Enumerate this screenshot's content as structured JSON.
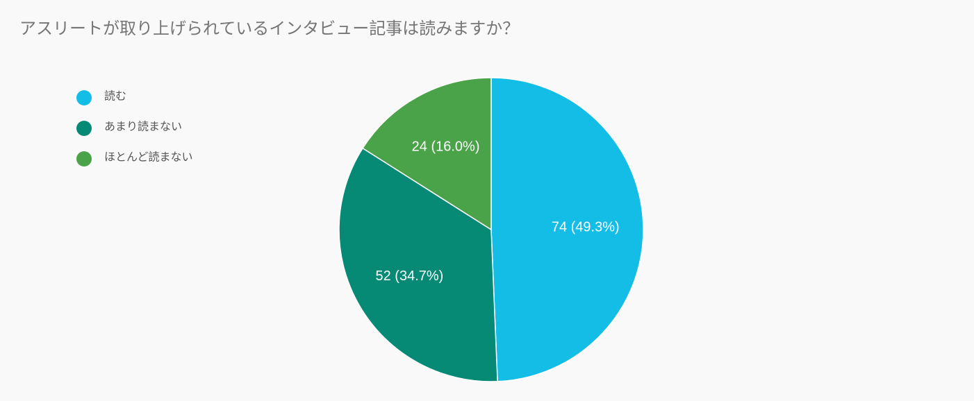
{
  "chart_data": {
    "type": "pie",
    "title": "アスリートが取り上げられているインタビュー記事は読みますか？",
    "categories": [
      "読む",
      "あまり読まない",
      "ほとんど読まない"
    ],
    "values": [
      74,
      52,
      24
    ],
    "value_labels": [
      "74 (49.3%)",
      "52 (34.7%)",
      "24 (16.0%)"
    ],
    "colors": [
      "#14bde6",
      "#068a76",
      "#4aa348"
    ],
    "legend": "left"
  }
}
